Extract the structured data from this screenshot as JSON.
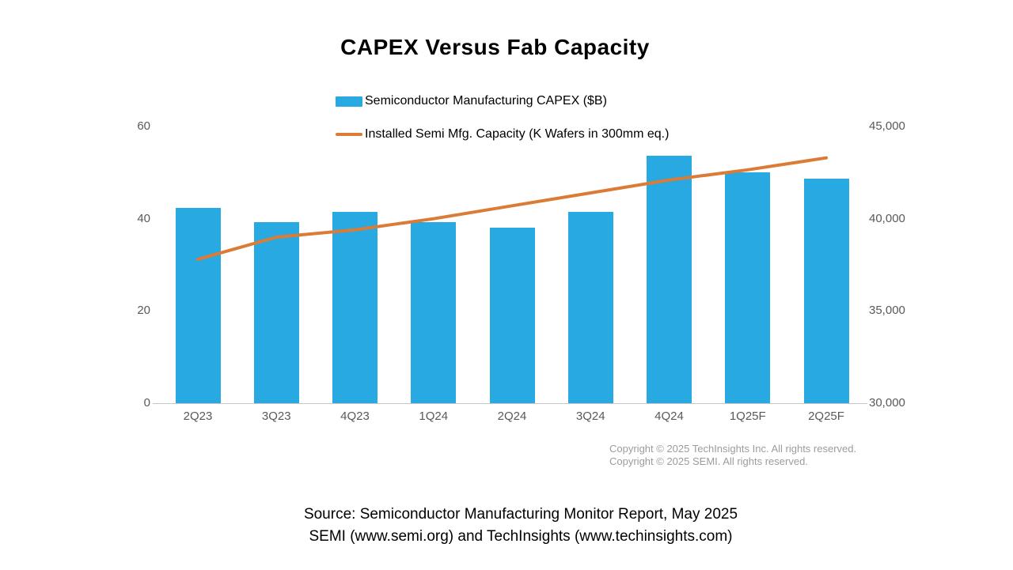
{
  "title": {
    "text": "CAPEX Versus Fab Capacity"
  },
  "legend": {
    "items": [
      {
        "label": "Semiconductor Manufacturing CAPEX ($B)",
        "marker": "bar-swatch",
        "color": "#29A9E1"
      },
      {
        "label": "Installed Semi Mfg. Capacity (K Wafers in 300mm eq.)",
        "marker": "line-swatch",
        "color": "#DB7B36"
      }
    ]
  },
  "chart_data": {
    "type": "combo-bar-line",
    "categories": [
      "2Q23",
      "3Q23",
      "4Q23",
      "1Q24",
      "2Q24",
      "3Q24",
      "4Q24",
      "1Q25F",
      "2Q25F"
    ],
    "series": [
      {
        "name": "Semiconductor Manufacturing CAPEX ($B)",
        "chart": "bar",
        "axis": "left",
        "color": "#29A9E1",
        "values": [
          42.4,
          39.3,
          41.5,
          39.3,
          38.0,
          41.5,
          53.7,
          50.0,
          48.7
        ]
      },
      {
        "name": "Installed Semi Mfg. Capacity (K Wafers in 300mm eq.)",
        "chart": "line",
        "axis": "right",
        "color": "#DB7B36",
        "values": [
          37800,
          39000,
          39400,
          40000,
          40700,
          41400,
          42100,
          42650,
          43300
        ]
      }
    ],
    "left_axis": {
      "range": [
        0,
        60
      ],
      "ticks": [
        0,
        20,
        40,
        60
      ],
      "tick_labels": [
        "0",
        "20",
        "40",
        "60"
      ]
    },
    "right_axis": {
      "range": [
        30000,
        45000
      ],
      "ticks": [
        30000,
        35000,
        40000,
        45000
      ],
      "tick_labels": [
        "30,000",
        "35,000",
        "40,000",
        "45,000"
      ]
    },
    "grid": false,
    "legend_position": "top-center",
    "title": "CAPEX Versus Fab Capacity"
  },
  "copyright": {
    "line1": "Copyright © 2025 TechInsights Inc.  All rights reserved.",
    "line2": "Copyright © 2025 SEMI.  All rights reserved."
  },
  "source": {
    "line1": "Source: Semiconductor Manufacturing Monitor Report, May 2025",
    "line2": "SEMI (www.semi.org) and TechInsights (www.techinsights.com)"
  },
  "colors": {
    "bar": "#29A9E1",
    "line": "#DB7B36",
    "axis_text": "#595959",
    "copyright_text": "#9c9c9c",
    "baseline": "#c6c6c6",
    "title_text": "#000000"
  }
}
